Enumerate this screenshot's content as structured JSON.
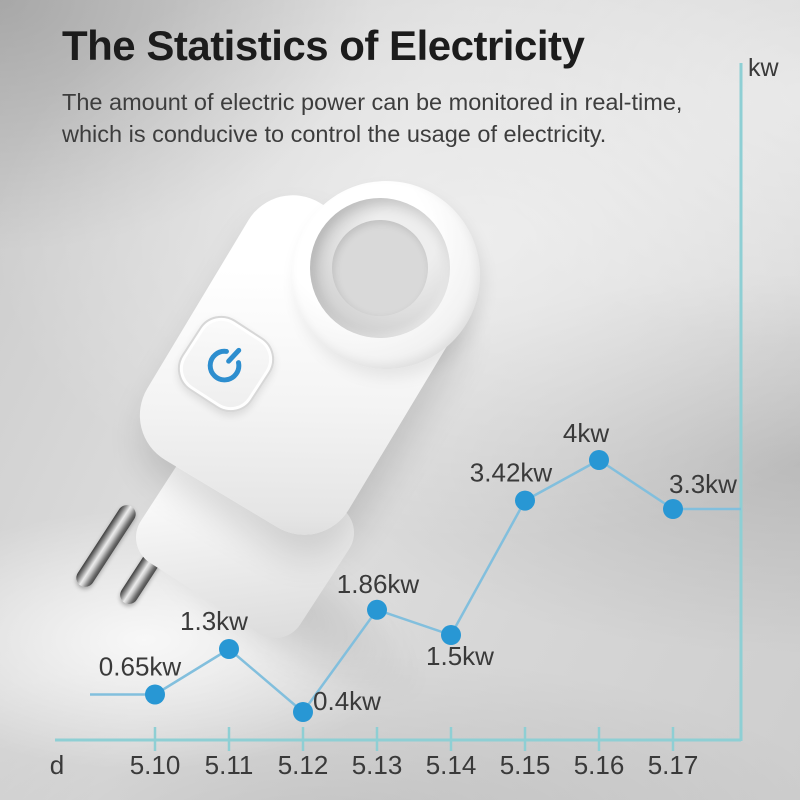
{
  "header": {
    "title": "The Statistics of Electricity",
    "subtitle_lines": [
      "The amount of electric power can be monitored in real-time,",
      "which is conducive to control the usage of electricity."
    ]
  },
  "device": {
    "power_icon": "power-symbol",
    "power_icon_color": "#2d8ecf"
  },
  "chart_data": {
    "type": "line",
    "title": "",
    "x": [
      "5.10",
      "5.11",
      "5.12",
      "5.13",
      "5.14",
      "5.15",
      "5.16",
      "5.17"
    ],
    "values": [
      0.65,
      1.3,
      0.4,
      1.86,
      1.5,
      3.42,
      4,
      3.3
    ],
    "point_labels": [
      "0.65kw",
      "1.3kw",
      "0.4kw",
      "1.86kw",
      "1.5kw",
      "3.42kw",
      "4kw",
      "3.3kw"
    ],
    "xlabel": "d",
    "ylabel": "kw",
    "grid": false,
    "legend": false,
    "colors": {
      "line": "#82bfdd",
      "point": "#2897d4",
      "axis": "#8ecfd4",
      "text": "#3a3a3a"
    }
  }
}
